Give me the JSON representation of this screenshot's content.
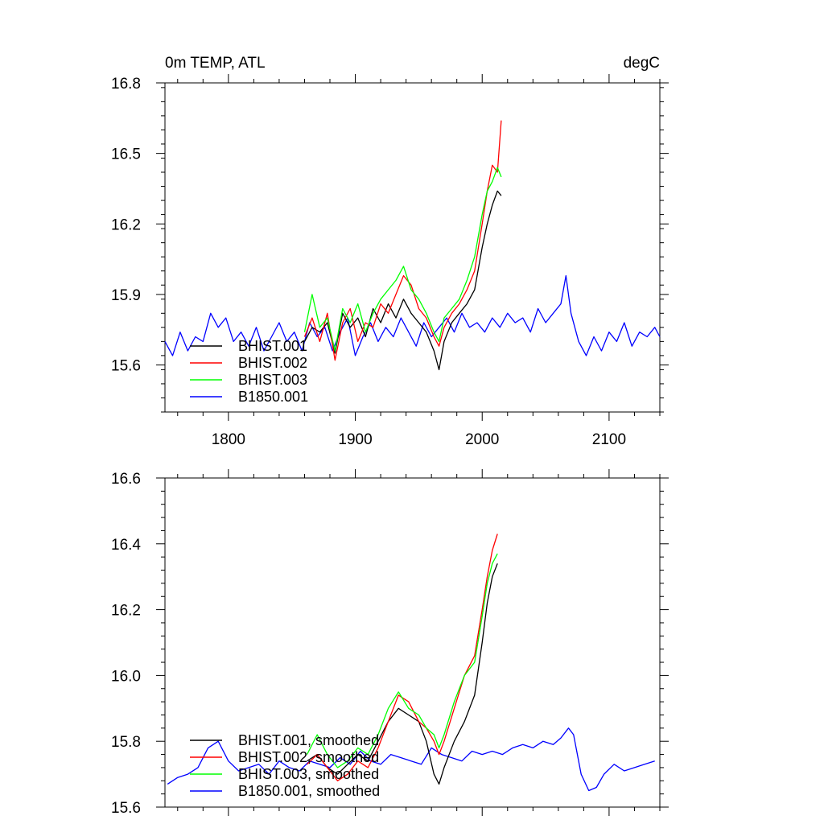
{
  "chart_data": [
    {
      "type": "line",
      "title": "0m TEMP, ATL",
      "units": "degC",
      "xlim": [
        1750,
        2140
      ],
      "ylim": [
        15.4,
        16.8
      ],
      "xticks": [
        1800,
        1900,
        2000,
        2100
      ],
      "xtick_labels": [
        "1800",
        "1900",
        "2000",
        "2100"
      ],
      "yticks": [
        15.6,
        15.9,
        16.2,
        16.5,
        16.8
      ],
      "ytick_labels": [
        "15.6",
        "15.9",
        "16.2",
        "16.5",
        "16.8"
      ],
      "grid": false,
      "legend_position": "bottom-left",
      "series": [
        {
          "name": "BHIST.001",
          "color": "#000000",
          "x": [
            1860,
            1866,
            1872,
            1878,
            1884,
            1890,
            1896,
            1902,
            1908,
            1914,
            1920,
            1926,
            1932,
            1938,
            1944,
            1950,
            1956,
            1962,
            1966,
            1970,
            1976,
            1982,
            1988,
            1994,
            2000,
            2004,
            2008,
            2012,
            2015
          ],
          "y": [
            15.7,
            15.76,
            15.74,
            15.78,
            15.65,
            15.82,
            15.76,
            15.8,
            15.72,
            15.84,
            15.78,
            15.86,
            15.8,
            15.88,
            15.82,
            15.78,
            15.74,
            15.66,
            15.58,
            15.7,
            15.78,
            15.82,
            15.86,
            15.92,
            16.1,
            16.2,
            16.28,
            16.34,
            16.32
          ]
        },
        {
          "name": "BHIST.002",
          "color": "#ff0000",
          "x": [
            1860,
            1866,
            1872,
            1878,
            1884,
            1890,
            1896,
            1902,
            1908,
            1914,
            1920,
            1926,
            1932,
            1938,
            1944,
            1950,
            1956,
            1962,
            1966,
            1970,
            1976,
            1982,
            1988,
            1994,
            2000,
            2004,
            2008,
            2012,
            2015
          ],
          "y": [
            15.72,
            15.8,
            15.7,
            15.82,
            15.62,
            15.78,
            15.84,
            15.7,
            15.78,
            15.76,
            15.86,
            15.82,
            15.9,
            15.98,
            15.94,
            15.84,
            15.8,
            15.72,
            15.68,
            15.76,
            15.82,
            15.86,
            15.92,
            16.0,
            16.2,
            16.34,
            16.45,
            16.42,
            16.64
          ]
        },
        {
          "name": "BHIST.003",
          "color": "#00ff00",
          "x": [
            1860,
            1866,
            1872,
            1878,
            1884,
            1890,
            1896,
            1902,
            1908,
            1914,
            1920,
            1926,
            1932,
            1938,
            1944,
            1950,
            1956,
            1962,
            1966,
            1970,
            1976,
            1982,
            1988,
            1994,
            2000,
            2004,
            2008,
            2012,
            2015
          ],
          "y": [
            15.74,
            15.9,
            15.76,
            15.8,
            15.66,
            15.84,
            15.78,
            15.86,
            15.74,
            15.82,
            15.88,
            15.92,
            15.96,
            16.02,
            15.92,
            15.88,
            15.82,
            15.74,
            15.7,
            15.8,
            15.84,
            15.88,
            15.96,
            16.06,
            16.24,
            16.34,
            16.38,
            16.44,
            16.4
          ]
        },
        {
          "name": "B1850.001",
          "color": "#0000ff",
          "x": [
            1750,
            1756,
            1762,
            1768,
            1774,
            1780,
            1786,
            1792,
            1798,
            1804,
            1810,
            1816,
            1822,
            1828,
            1834,
            1840,
            1846,
            1852,
            1858,
            1864,
            1870,
            1876,
            1882,
            1888,
            1894,
            1900,
            1906,
            1912,
            1918,
            1924,
            1930,
            1936,
            1942,
            1948,
            1954,
            1960,
            1966,
            1972,
            1978,
            1984,
            1990,
            1996,
            2002,
            2008,
            2014,
            2020,
            2026,
            2032,
            2038,
            2044,
            2050,
            2056,
            2062,
            2066,
            2070,
            2076,
            2082,
            2088,
            2094,
            2100,
            2106,
            2112,
            2118,
            2124,
            2130,
            2136,
            2140
          ],
          "y": [
            15.7,
            15.64,
            15.74,
            15.66,
            15.72,
            15.7,
            15.82,
            15.76,
            15.8,
            15.7,
            15.74,
            15.68,
            15.76,
            15.66,
            15.72,
            15.78,
            15.7,
            15.74,
            15.66,
            15.78,
            15.72,
            15.76,
            15.66,
            15.74,
            15.8,
            15.64,
            15.72,
            15.78,
            15.7,
            15.76,
            15.72,
            15.8,
            15.74,
            15.68,
            15.78,
            15.72,
            15.76,
            15.8,
            15.74,
            15.82,
            15.76,
            15.78,
            15.74,
            15.8,
            15.76,
            15.82,
            15.78,
            15.8,
            15.74,
            15.84,
            15.78,
            15.82,
            15.86,
            15.98,
            15.82,
            15.7,
            15.64,
            15.72,
            15.66,
            15.74,
            15.7,
            15.78,
            15.68,
            15.74,
            15.72,
            15.76,
            15.72
          ]
        }
      ]
    },
    {
      "type": "line",
      "xlim": [
        1750,
        2140
      ],
      "ylim": [
        15.6,
        16.6
      ],
      "xticks": [
        1800,
        1900,
        2000,
        2100
      ],
      "yticks": [
        15.6,
        15.8,
        16.0,
        16.2,
        16.4,
        16.6
      ],
      "ytick_labels": [
        "15.6",
        "15.8",
        "16.0",
        "16.2",
        "16.4",
        "16.6"
      ],
      "grid": false,
      "legend_position": "bottom-left",
      "series": [
        {
          "name": "BHIST.001, smoothed",
          "color": "#000000",
          "x": [
            1862,
            1870,
            1878,
            1886,
            1894,
            1902,
            1910,
            1918,
            1926,
            1934,
            1942,
            1950,
            1956,
            1962,
            1966,
            1970,
            1978,
            1986,
            1994,
            2000,
            2004,
            2008,
            2012
          ],
          "y": [
            15.74,
            15.76,
            15.72,
            15.7,
            15.73,
            15.76,
            15.74,
            15.8,
            15.86,
            15.9,
            15.88,
            15.86,
            15.8,
            15.7,
            15.67,
            15.72,
            15.8,
            15.86,
            15.94,
            16.1,
            16.22,
            16.3,
            16.34
          ]
        },
        {
          "name": "BHIST.002, smoothed",
          "color": "#ff0000",
          "x": [
            1862,
            1870,
            1878,
            1886,
            1894,
            1902,
            1910,
            1918,
            1926,
            1934,
            1942,
            1950,
            1956,
            1962,
            1966,
            1970,
            1978,
            1986,
            1994,
            2000,
            2004,
            2008,
            2012
          ],
          "y": [
            15.73,
            15.76,
            15.72,
            15.68,
            15.7,
            15.74,
            15.72,
            15.78,
            15.86,
            15.94,
            15.92,
            15.86,
            15.84,
            15.8,
            15.76,
            15.8,
            15.9,
            16.0,
            16.06,
            16.2,
            16.3,
            16.38,
            16.43
          ]
        },
        {
          "name": "BHIST.003, smoothed",
          "color": "#00ff00",
          "x": [
            1862,
            1870,
            1878,
            1886,
            1894,
            1902,
            1910,
            1918,
            1926,
            1934,
            1942,
            1950,
            1956,
            1962,
            1966,
            1970,
            1978,
            1986,
            1994,
            2000,
            2004,
            2008,
            2012
          ],
          "y": [
            15.76,
            15.82,
            15.76,
            15.72,
            15.74,
            15.78,
            15.76,
            15.82,
            15.9,
            15.95,
            15.9,
            15.88,
            15.84,
            15.82,
            15.78,
            15.82,
            15.92,
            16.0,
            16.04,
            16.18,
            16.28,
            16.34,
            16.37
          ]
        },
        {
          "name": "B1850.001, smoothed",
          "color": "#0000ff",
          "x": [
            1752,
            1760,
            1768,
            1776,
            1784,
            1792,
            1800,
            1808,
            1816,
            1824,
            1832,
            1840,
            1848,
            1856,
            1864,
            1872,
            1880,
            1888,
            1896,
            1904,
            1912,
            1920,
            1928,
            1936,
            1944,
            1952,
            1960,
            1968,
            1976,
            1984,
            1992,
            2000,
            2008,
            2016,
            2024,
            2032,
            2040,
            2048,
            2056,
            2062,
            2068,
            2072,
            2078,
            2084,
            2090,
            2096,
            2104,
            2112,
            2120,
            2128,
            2136
          ],
          "y": [
            15.67,
            15.69,
            15.7,
            15.72,
            15.78,
            15.8,
            15.74,
            15.71,
            15.72,
            15.73,
            15.7,
            15.74,
            15.72,
            15.71,
            15.74,
            15.73,
            15.72,
            15.75,
            15.73,
            15.77,
            15.74,
            15.73,
            15.76,
            15.75,
            15.74,
            15.73,
            15.78,
            15.76,
            15.75,
            15.74,
            15.77,
            15.76,
            15.77,
            15.76,
            15.78,
            15.79,
            15.78,
            15.8,
            15.79,
            15.81,
            15.84,
            15.82,
            15.7,
            15.65,
            15.66,
            15.7,
            15.73,
            15.71,
            15.72,
            15.73,
            15.74
          ]
        }
      ]
    }
  ]
}
